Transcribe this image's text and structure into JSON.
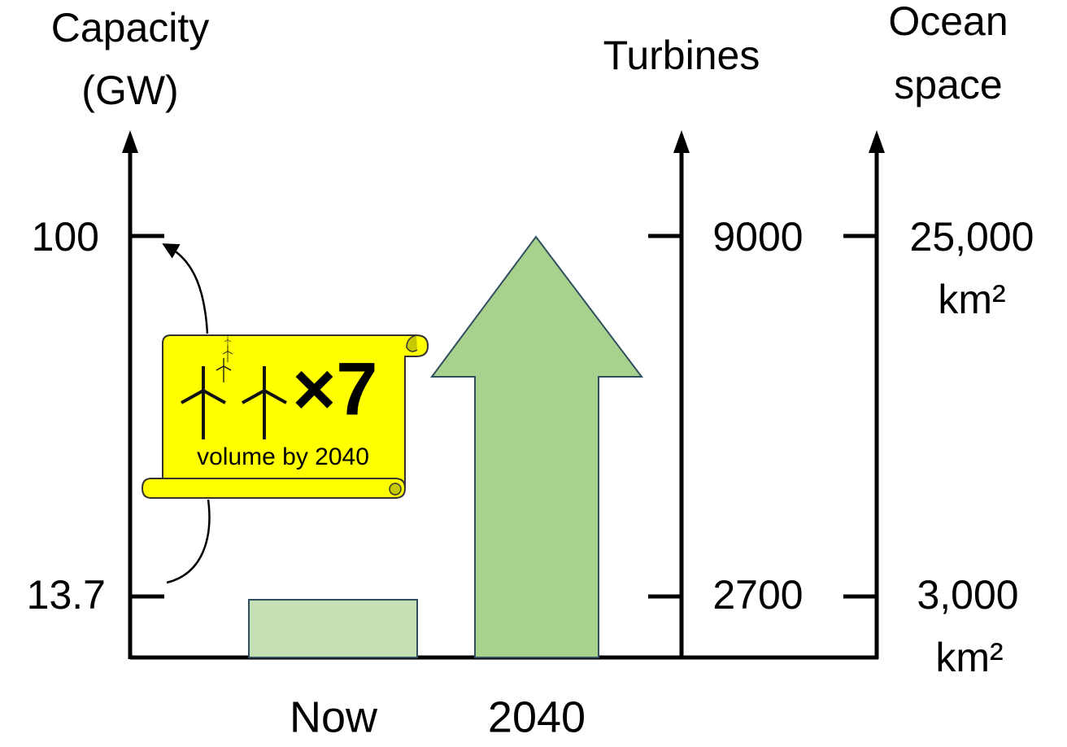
{
  "axes": [
    {
      "title": [
        "Capacity",
        "(GW)"
      ],
      "ticks": [
        "100",
        "13.7"
      ]
    },
    {
      "title": [
        "Turbines"
      ],
      "ticks": [
        "9000",
        "2700"
      ]
    },
    {
      "title": [
        "Ocean",
        "space"
      ],
      "ticks": [
        [
          "25,000",
          "km²"
        ],
        [
          "3,000",
          "km²"
        ]
      ]
    }
  ],
  "categories": [
    "Now",
    "2040"
  ],
  "callout": {
    "multiplier": "×7",
    "text": "volume by 2040"
  }
}
